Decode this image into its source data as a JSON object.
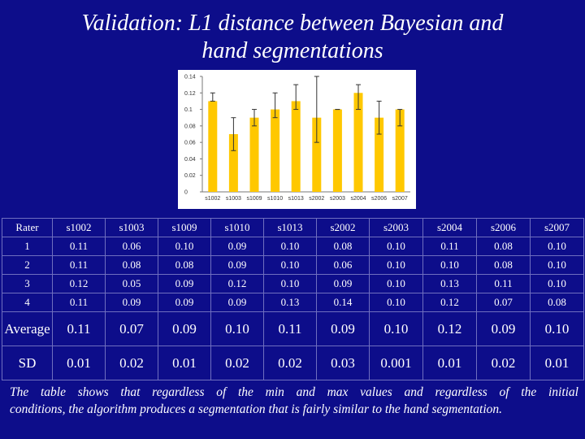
{
  "slide": {
    "title_line1": "Validation: L1 distance between Bayesian and",
    "title_line2": "hand segmentations",
    "caption_line1": "The table shows that regardless of the min and max values and regardless of the initial",
    "caption_line2": "conditions, the algorithm produces a segmentation that is fairly similar to the hand segmentation."
  },
  "colors": {
    "background": "#0d0d8a",
    "bar": "#ffc800",
    "text": "#ffffff"
  },
  "chart_data": {
    "type": "bar",
    "categories": [
      "s1002",
      "s1003",
      "s1009",
      "s1010",
      "s1013",
      "s2002",
      "s2003",
      "s2004",
      "s2006",
      "s2007"
    ],
    "values": [
      0.11,
      0.07,
      0.09,
      0.1,
      0.11,
      0.09,
      0.1,
      0.12,
      0.09,
      0.1
    ],
    "error_low": [
      0.11,
      0.05,
      0.08,
      0.09,
      0.1,
      0.06,
      0.1,
      0.1,
      0.07,
      0.08
    ],
    "error_high": [
      0.12,
      0.09,
      0.1,
      0.12,
      0.13,
      0.14,
      0.1,
      0.13,
      0.11,
      0.1
    ],
    "ylim": [
      0,
      0.14
    ],
    "yticks": [
      "0.14",
      "0.12",
      "0.1",
      "0.08",
      "0.06",
      "0.04",
      "0.02",
      "0"
    ],
    "title": "",
    "xlabel": "",
    "ylabel": "",
    "grid": false
  },
  "table": {
    "columns": [
      "Rater",
      "s1002",
      "s1003",
      "s1009",
      "s1010",
      "s1013",
      "s2002",
      "s2003",
      "s2004",
      "s2006",
      "s2007"
    ],
    "rows": [
      {
        "label": "1",
        "values": [
          "0.11",
          "0.06",
          "0.10",
          "0.09",
          "0.10",
          "0.08",
          "0.10",
          "0.11",
          "0.08",
          "0.10"
        ]
      },
      {
        "label": "2",
        "values": [
          "0.11",
          "0.08",
          "0.08",
          "0.09",
          "0.10",
          "0.06",
          "0.10",
          "0.10",
          "0.08",
          "0.10"
        ]
      },
      {
        "label": "3",
        "values": [
          "0.12",
          "0.05",
          "0.09",
          "0.12",
          "0.10",
          "0.09",
          "0.10",
          "0.13",
          "0.11",
          "0.10"
        ]
      },
      {
        "label": "4",
        "values": [
          "0.11",
          "0.09",
          "0.09",
          "0.09",
          "0.13",
          "0.14",
          "0.10",
          "0.12",
          "0.07",
          "0.08"
        ]
      }
    ],
    "summary": [
      {
        "label": "Average",
        "values": [
          "0.11",
          "0.07",
          "0.09",
          "0.10",
          "0.11",
          "0.09",
          "0.10",
          "0.12",
          "0.09",
          "0.10"
        ]
      },
      {
        "label": "SD",
        "values": [
          "0.01",
          "0.02",
          "0.01",
          "0.02",
          "0.02",
          "0.03",
          "0.001",
          "0.01",
          "0.02",
          "0.01"
        ]
      }
    ]
  }
}
